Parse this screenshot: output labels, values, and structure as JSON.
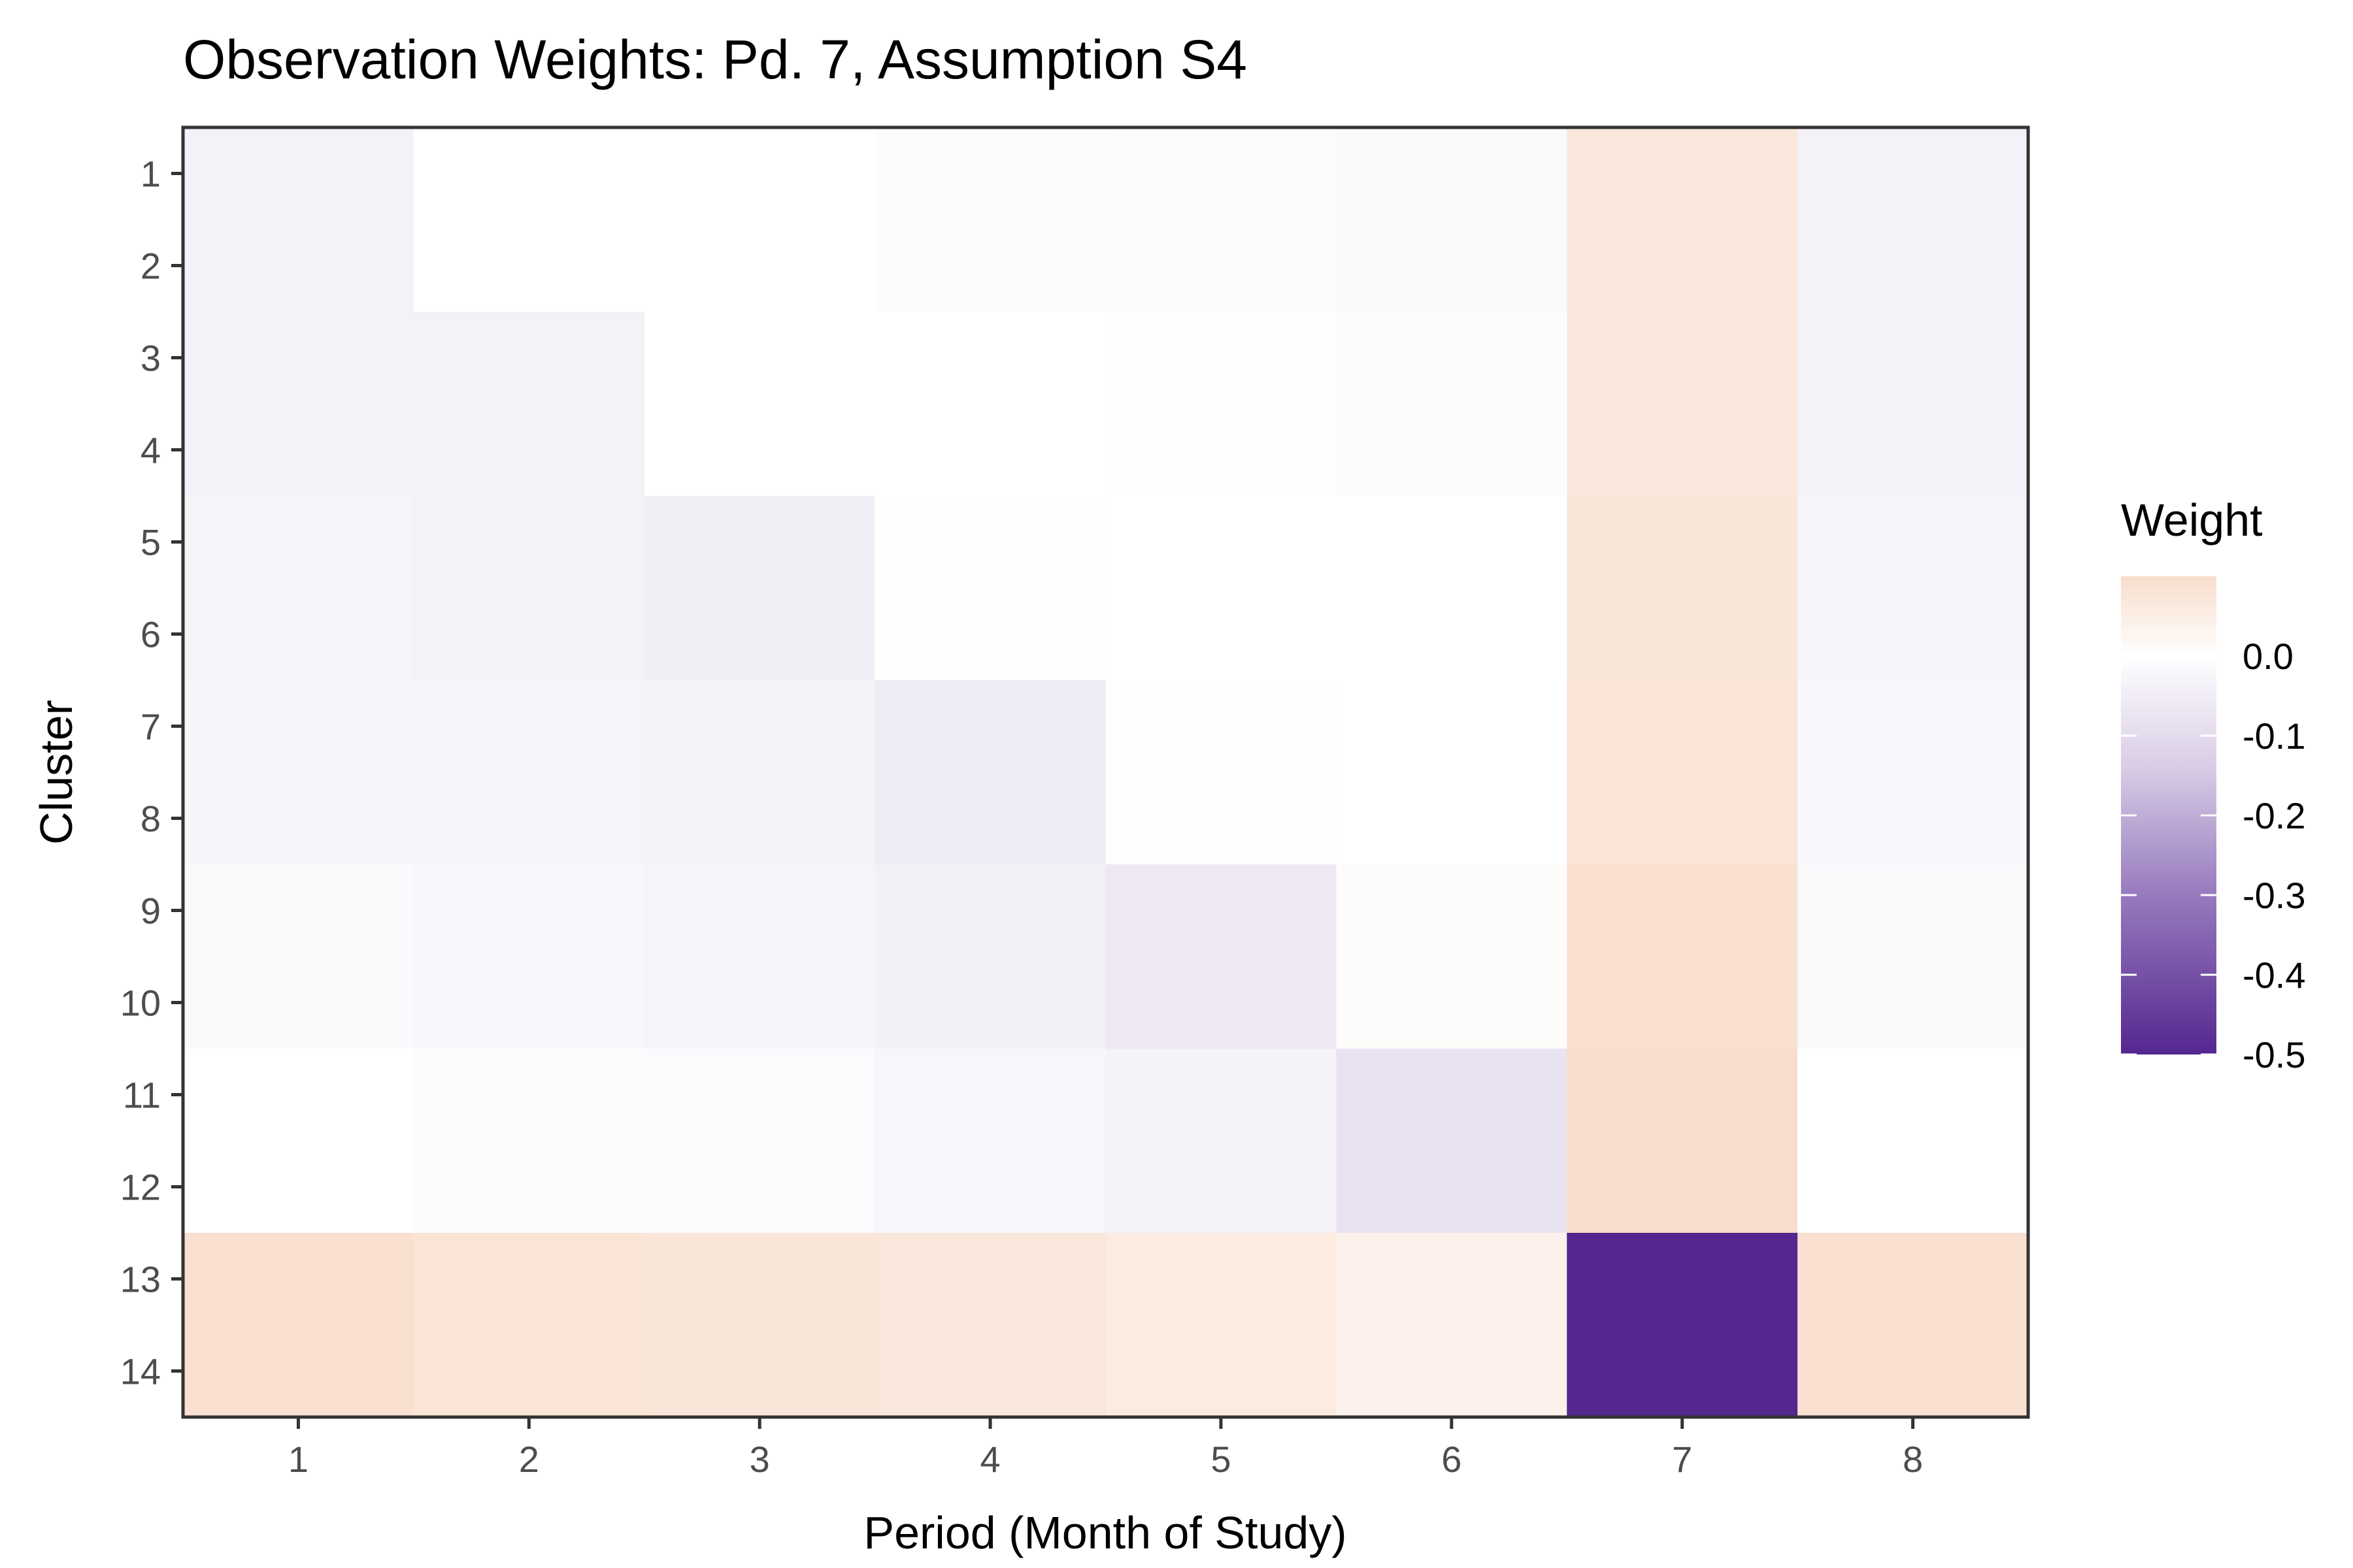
{
  "chart_data": {
    "type": "heatmap",
    "title": "Observation Weights: Pd. 7, Assumption S4",
    "xlabel": "Period (Month of Study)",
    "ylabel": "Cluster",
    "x_categories": [
      "1",
      "2",
      "3",
      "4",
      "5",
      "6",
      "7",
      "8"
    ],
    "y_categories": [
      "1",
      "2",
      "3",
      "4",
      "5",
      "6",
      "7",
      "8",
      "9",
      "10",
      "11",
      "12",
      "13",
      "14"
    ],
    "values": [
      [
        -0.02,
        0.0,
        0.0,
        -0.004,
        -0.006,
        -0.008,
        0.07,
        -0.02
      ],
      [
        -0.02,
        0.0,
        0.0,
        -0.004,
        -0.006,
        -0.008,
        0.07,
        -0.02
      ],
      [
        -0.02,
        -0.02,
        0.0,
        0.0,
        -0.002,
        -0.004,
        0.07,
        -0.02
      ],
      [
        -0.02,
        -0.02,
        0.0,
        0.0,
        -0.002,
        -0.004,
        0.07,
        -0.02
      ],
      [
        -0.016,
        -0.02,
        -0.025,
        0.003,
        0.0,
        0.0,
        0.075,
        -0.016
      ],
      [
        -0.016,
        -0.02,
        -0.025,
        0.003,
        0.0,
        0.0,
        0.075,
        -0.016
      ],
      [
        -0.013,
        -0.016,
        -0.018,
        -0.03,
        0.004,
        0.0,
        0.08,
        -0.01
      ],
      [
        -0.013,
        -0.016,
        -0.018,
        -0.03,
        0.004,
        0.0,
        0.08,
        -0.01
      ],
      [
        -0.008,
        -0.01,
        -0.016,
        -0.022,
        -0.035,
        0.01,
        0.09,
        -0.007
      ],
      [
        -0.008,
        -0.01,
        -0.016,
        -0.022,
        -0.035,
        0.01,
        0.09,
        -0.007
      ],
      [
        0.0,
        -0.004,
        -0.006,
        -0.012,
        -0.018,
        -0.045,
        0.1,
        0.0
      ],
      [
        0.0,
        -0.004,
        -0.006,
        -0.012,
        -0.018,
        -0.045,
        0.1,
        0.0
      ],
      [
        0.09,
        0.08,
        0.075,
        0.07,
        0.06,
        0.04,
        -0.5,
        0.09
      ],
      [
        0.09,
        0.08,
        0.075,
        0.07,
        0.06,
        0.04,
        -0.5,
        0.09
      ]
    ],
    "legend": {
      "title": "Weight",
      "position": "right",
      "breaks": [
        "0.0",
        "-0.1",
        "-0.2",
        "-0.3",
        "-0.4",
        "-0.5"
      ],
      "min": -0.5,
      "max": 0.1,
      "low_color": "#54278f",
      "mid_color": "#ffffff",
      "high_color": "#f8ddcc"
    },
    "grid": false
  }
}
